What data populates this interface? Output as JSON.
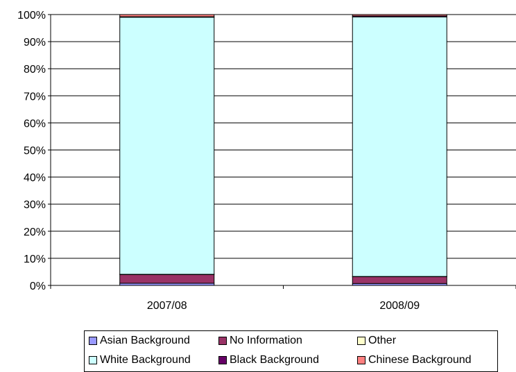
{
  "chart_data": {
    "type": "bar",
    "stacked": true,
    "percent": true,
    "categories": [
      "2007/08",
      "2008/09"
    ],
    "series": [
      {
        "name": "Asian Background",
        "color": "#9999FF",
        "values": [
          0.8,
          0.7
        ]
      },
      {
        "name": "No Information",
        "color": "#993366",
        "values": [
          3.2,
          2.5
        ]
      },
      {
        "name": "Other",
        "color": "#FFFFCC",
        "values": [
          0.1,
          0.1
        ]
      },
      {
        "name": "White Background",
        "color": "#CCFFFF",
        "values": [
          94.9,
          95.8
        ]
      },
      {
        "name": "Black Background",
        "color": "#660066",
        "values": [
          0.2,
          0.4
        ]
      },
      {
        "name": "Chinese Background",
        "color": "#FF8080",
        "values": [
          0.8,
          0.5
        ]
      }
    ],
    "y_ticks": [
      "0%",
      "10%",
      "20%",
      "30%",
      "40%",
      "50%",
      "60%",
      "70%",
      "80%",
      "90%",
      "100%"
    ],
    "ylim": [
      0,
      100
    ],
    "grid": true,
    "legend": "bottom"
  }
}
